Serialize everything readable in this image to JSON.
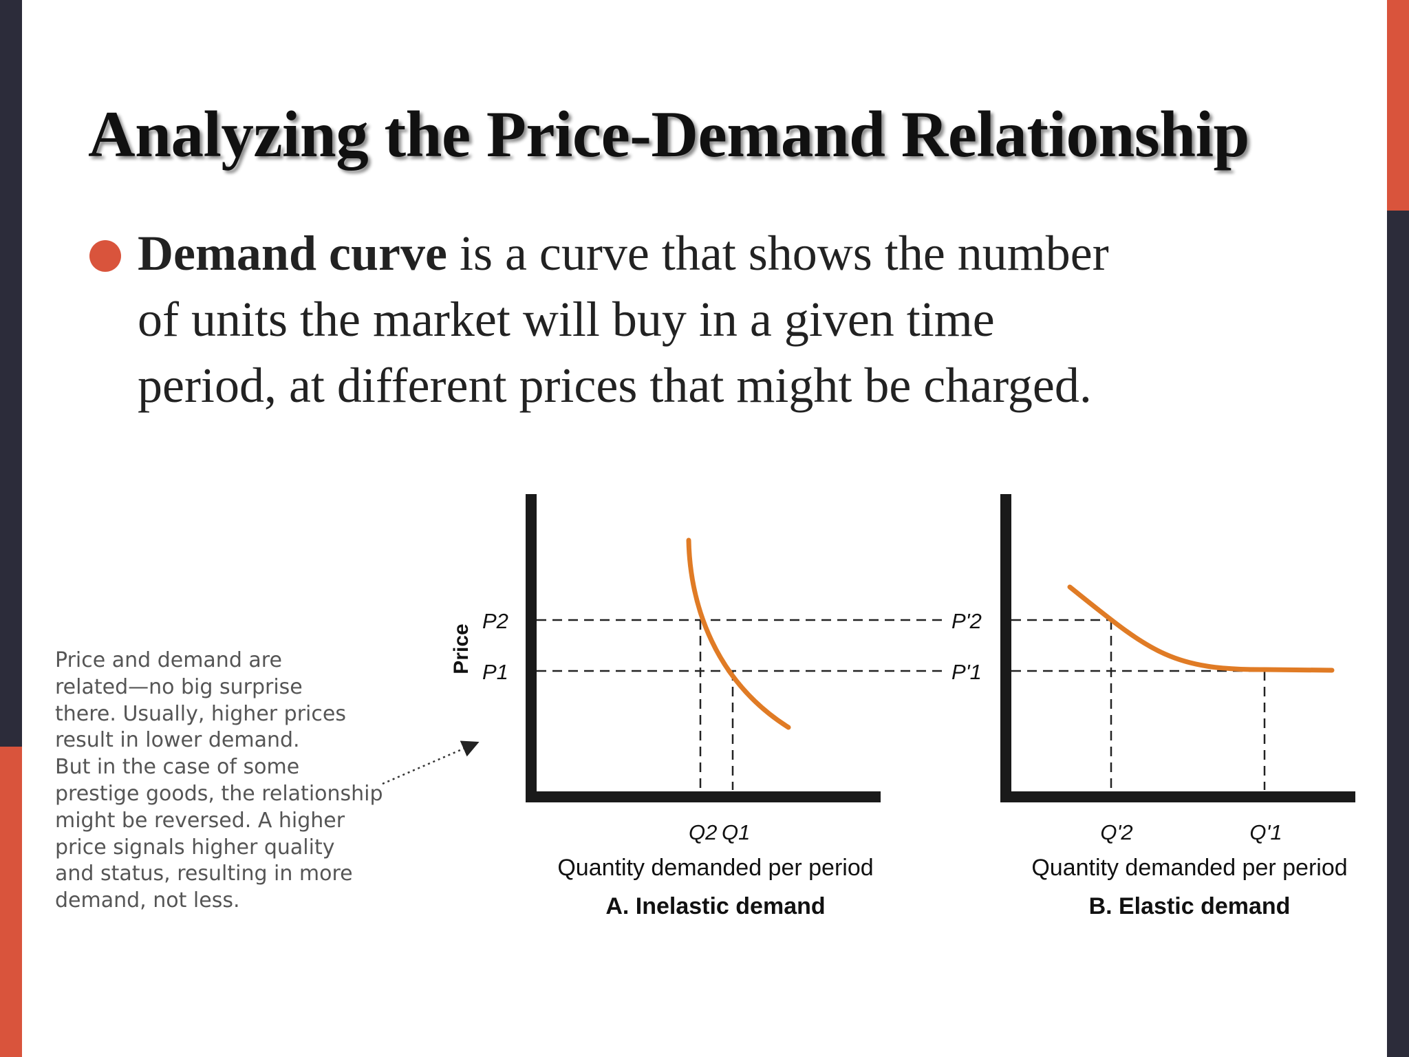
{
  "slide": {
    "title": "Analyzing the Price-Demand Relationship",
    "bullet": {
      "term": "Demand curve",
      "line1_rest": " is a curve that shows the number",
      "line2": "of units the market will buy in a given time",
      "line3": "period, at different prices that might be charged."
    },
    "accent_color": "#d9543c",
    "dark_color": "#2c2c3a"
  },
  "annotation": {
    "lines": [
      "Price and demand are",
      "related—no big surprise",
      "there. Usually, higher prices",
      "result in lower demand.",
      "But in the case of some",
      "prestige goods, the relationship",
      "might be reversed. A higher",
      "price signals higher quality",
      "and status, resulting in more",
      "demand, not less."
    ]
  },
  "diagram": {
    "y_axis_label": "Price",
    "curve_color": "#e07b25",
    "panel_a": {
      "price_labels": [
        "P2",
        "P1"
      ],
      "quantity_labels": [
        "Q2",
        "Q1"
      ],
      "xlabel": "Quantity demanded per period",
      "caption": "A. Inelastic demand"
    },
    "panel_b": {
      "price_labels": [
        "P'2",
        "P'1"
      ],
      "quantity_labels": [
        "Q'2",
        "Q'1"
      ],
      "xlabel": "Quantity demanded per period",
      "caption": "B. Elastic demand"
    }
  }
}
